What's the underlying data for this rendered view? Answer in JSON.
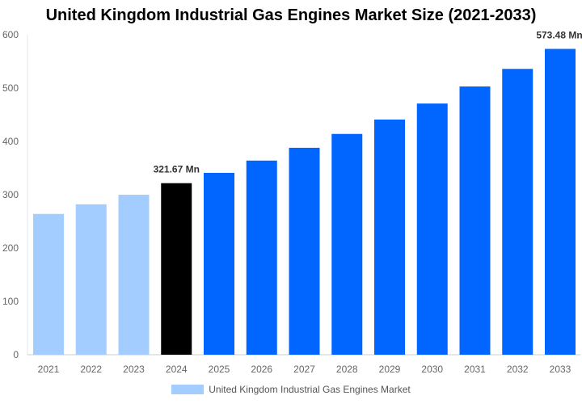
{
  "chart_data": {
    "type": "bar",
    "title": "United Kingdom Industrial Gas Engines Market Size (2021-2033)",
    "categories": [
      "2021",
      "2022",
      "2023",
      "2024",
      "2025",
      "2026",
      "2027",
      "2028",
      "2029",
      "2030",
      "2031",
      "2032",
      "2033"
    ],
    "series": [
      {
        "name": "United Kingdom Industrial Gas Engines Market",
        "values": [
          264,
          282,
          300,
          321.67,
          341,
          364,
          388,
          414,
          441,
          471,
          503,
          536,
          573.48
        ]
      }
    ],
    "data_labels": {
      "2024": "321.67 Mn",
      "2033": "573.48 Mn"
    },
    "ylim": [
      0,
      600
    ],
    "yticks": [
      0,
      100,
      200,
      300,
      400,
      500,
      600
    ],
    "xlabel": "",
    "ylabel": "",
    "grid": false,
    "legend": "bottom",
    "colors": {
      "historical": "#a3cdff",
      "base_year": "#000000",
      "forecast": "#0066ff"
    }
  }
}
